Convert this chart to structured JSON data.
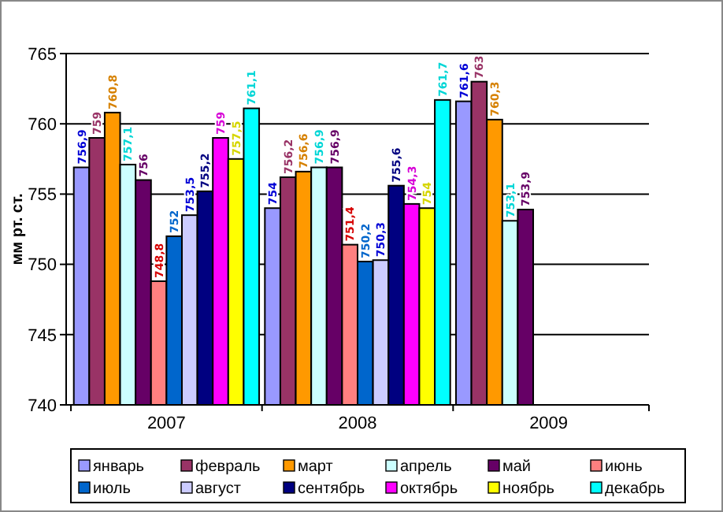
{
  "chart_data": {
    "type": "bar",
    "ylabel": "мм рт. ст.",
    "categories": [
      "2007",
      "2008",
      "2009"
    ],
    "ylim": [
      740,
      765
    ],
    "yticks": [
      740,
      745,
      750,
      755,
      760,
      765
    ],
    "grid": "y",
    "legend": "bottom",
    "series": [
      {
        "name": "январь",
        "color": "#9999ff",
        "values": [
          756.9,
          754,
          761.6
        ],
        "value_labels": [
          "756,9",
          "754",
          "761,6"
        ]
      },
      {
        "name": "февраль",
        "color": "#993366",
        "values": [
          759,
          756.2,
          763
        ],
        "value_labels": [
          "759",
          "756,2",
          "763"
        ]
      },
      {
        "name": "март",
        "color": "#ff9900",
        "values": [
          760.8,
          756.6,
          760.3
        ],
        "value_labels": [
          "760,8",
          "756,6",
          "760,3"
        ]
      },
      {
        "name": "апрель",
        "color": "#ccffff",
        "values": [
          757.1,
          756.9,
          753.1
        ],
        "value_labels": [
          "757,1",
          "756,9",
          "753,1"
        ]
      },
      {
        "name": "май",
        "color": "#660066",
        "values": [
          756,
          756.9,
          753.9
        ],
        "value_labels": [
          "756",
          "756,9",
          "753,9"
        ]
      },
      {
        "name": "июнь",
        "color": "#ff8080",
        "values": [
          748.8,
          751.4,
          null
        ],
        "value_labels": [
          "748,8",
          "751,4",
          null
        ]
      },
      {
        "name": "июль",
        "color": "#0066cc",
        "values": [
          752,
          750.2,
          null
        ],
        "value_labels": [
          "752",
          "750,2",
          null
        ]
      },
      {
        "name": "август",
        "color": "#ccccff",
        "values": [
          753.5,
          750.3,
          null
        ],
        "value_labels": [
          "753,5",
          "750,3",
          null
        ]
      },
      {
        "name": "сентябрь",
        "color": "#000080",
        "values": [
          755.2,
          755.6,
          null
        ],
        "value_labels": [
          "755,2",
          "755,6",
          null
        ]
      },
      {
        "name": "октябрь",
        "color": "#ff00ff",
        "values": [
          759,
          754.3,
          null
        ],
        "value_labels": [
          "759",
          "754,3",
          null
        ]
      },
      {
        "name": "ноябрь",
        "color": "#ffff00",
        "values": [
          757.5,
          754,
          null
        ],
        "value_labels": [
          "757,5",
          "754",
          null
        ]
      },
      {
        "name": "декабрь",
        "color": "#00ffff",
        "values": [
          761.1,
          761.7,
          null
        ],
        "value_labels": [
          "761,1",
          "761,7",
          null
        ]
      }
    ]
  }
}
